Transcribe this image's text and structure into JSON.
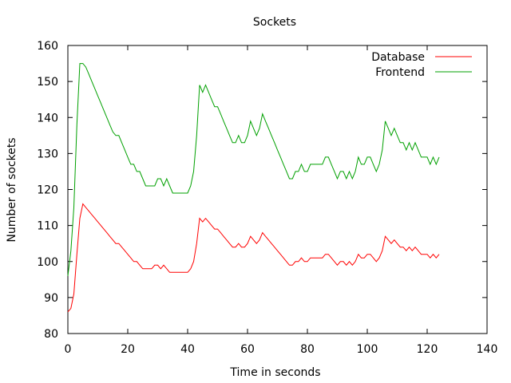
{
  "chart_data": {
    "type": "line",
    "title": "Sockets",
    "xlabel": "Time in seconds",
    "ylabel": "Number of sockets",
    "xlim": [
      0,
      140
    ],
    "ylim": [
      80,
      160
    ],
    "x_ticks": [
      "0",
      "20",
      "40",
      "60",
      "80",
      "100",
      "120",
      "140"
    ],
    "y_ticks": [
      "80",
      "90",
      "100",
      "110",
      "120",
      "130",
      "140",
      "150",
      "160"
    ],
    "grid": false,
    "legend_position": "top-right",
    "series": [
      {
        "name": "Database",
        "color": "#ff0000",
        "points": [
          [
            0,
            86
          ],
          [
            1,
            87
          ],
          [
            2,
            91
          ],
          [
            3,
            102
          ],
          [
            4,
            112
          ],
          [
            5,
            116
          ],
          [
            6,
            115
          ],
          [
            7,
            114
          ],
          [
            8,
            113
          ],
          [
            9,
            112
          ],
          [
            10,
            111
          ],
          [
            11,
            110
          ],
          [
            12,
            109
          ],
          [
            13,
            108
          ],
          [
            14,
            107
          ],
          [
            15,
            106
          ],
          [
            16,
            105
          ],
          [
            17,
            105
          ],
          [
            18,
            104
          ],
          [
            19,
            103
          ],
          [
            20,
            102
          ],
          [
            21,
            101
          ],
          [
            22,
            100
          ],
          [
            23,
            100
          ],
          [
            24,
            99
          ],
          [
            25,
            98
          ],
          [
            26,
            98
          ],
          [
            27,
            98
          ],
          [
            28,
            98
          ],
          [
            29,
            99
          ],
          [
            30,
            99
          ],
          [
            31,
            98
          ],
          [
            32,
            99
          ],
          [
            33,
            98
          ],
          [
            34,
            97
          ],
          [
            35,
            97
          ],
          [
            36,
            97
          ],
          [
            37,
            97
          ],
          [
            38,
            97
          ],
          [
            39,
            97
          ],
          [
            40,
            97
          ],
          [
            41,
            98
          ],
          [
            42,
            100
          ],
          [
            43,
            105
          ],
          [
            44,
            112
          ],
          [
            45,
            111
          ],
          [
            46,
            112
          ],
          [
            47,
            111
          ],
          [
            48,
            110
          ],
          [
            49,
            109
          ],
          [
            50,
            109
          ],
          [
            51,
            108
          ],
          [
            52,
            107
          ],
          [
            53,
            106
          ],
          [
            54,
            105
          ],
          [
            55,
            104
          ],
          [
            56,
            104
          ],
          [
            57,
            105
          ],
          [
            58,
            104
          ],
          [
            59,
            104
          ],
          [
            60,
            105
          ],
          [
            61,
            107
          ],
          [
            62,
            106
          ],
          [
            63,
            105
          ],
          [
            64,
            106
          ],
          [
            65,
            108
          ],
          [
            66,
            107
          ],
          [
            67,
            106
          ],
          [
            68,
            105
          ],
          [
            69,
            104
          ],
          [
            70,
            103
          ],
          [
            71,
            102
          ],
          [
            72,
            101
          ],
          [
            73,
            100
          ],
          [
            74,
            99
          ],
          [
            75,
            99
          ],
          [
            76,
            100
          ],
          [
            77,
            100
          ],
          [
            78,
            101
          ],
          [
            79,
            100
          ],
          [
            80,
            100
          ],
          [
            81,
            101
          ],
          [
            82,
            101
          ],
          [
            83,
            101
          ],
          [
            84,
            101
          ],
          [
            85,
            101
          ],
          [
            86,
            102
          ],
          [
            87,
            102
          ],
          [
            88,
            101
          ],
          [
            89,
            100
          ],
          [
            90,
            99
          ],
          [
            91,
            100
          ],
          [
            92,
            100
          ],
          [
            93,
            99
          ],
          [
            94,
            100
          ],
          [
            95,
            99
          ],
          [
            96,
            100
          ],
          [
            97,
            102
          ],
          [
            98,
            101
          ],
          [
            99,
            101
          ],
          [
            100,
            102
          ],
          [
            101,
            102
          ],
          [
            102,
            101
          ],
          [
            103,
            100
          ],
          [
            104,
            101
          ],
          [
            105,
            103
          ],
          [
            106,
            107
          ],
          [
            107,
            106
          ],
          [
            108,
            105
          ],
          [
            109,
            106
          ],
          [
            110,
            105
          ],
          [
            111,
            104
          ],
          [
            112,
            104
          ],
          [
            113,
            103
          ],
          [
            114,
            104
          ],
          [
            115,
            103
          ],
          [
            116,
            104
          ],
          [
            117,
            103
          ],
          [
            118,
            102
          ],
          [
            119,
            102
          ],
          [
            120,
            102
          ],
          [
            121,
            101
          ],
          [
            122,
            102
          ],
          [
            123,
            101
          ],
          [
            124,
            102
          ]
        ]
      },
      {
        "name": "Frontend",
        "color": "#00a000",
        "points": [
          [
            0,
            96
          ],
          [
            1,
            103
          ],
          [
            2,
            115
          ],
          [
            3,
            138
          ],
          [
            4,
            155
          ],
          [
            5,
            155
          ],
          [
            6,
            154
          ],
          [
            7,
            152
          ],
          [
            8,
            150
          ],
          [
            9,
            148
          ],
          [
            10,
            146
          ],
          [
            11,
            144
          ],
          [
            12,
            142
          ],
          [
            13,
            140
          ],
          [
            14,
            138
          ],
          [
            15,
            136
          ],
          [
            16,
            135
          ],
          [
            17,
            135
          ],
          [
            18,
            133
          ],
          [
            19,
            131
          ],
          [
            20,
            129
          ],
          [
            21,
            127
          ],
          [
            22,
            127
          ],
          [
            23,
            125
          ],
          [
            24,
            125
          ],
          [
            25,
            123
          ],
          [
            26,
            121
          ],
          [
            27,
            121
          ],
          [
            28,
            121
          ],
          [
            29,
            121
          ],
          [
            30,
            123
          ],
          [
            31,
            123
          ],
          [
            32,
            121
          ],
          [
            33,
            123
          ],
          [
            34,
            121
          ],
          [
            35,
            119
          ],
          [
            36,
            119
          ],
          [
            37,
            119
          ],
          [
            38,
            119
          ],
          [
            39,
            119
          ],
          [
            40,
            119
          ],
          [
            41,
            121
          ],
          [
            42,
            125
          ],
          [
            43,
            135
          ],
          [
            44,
            149
          ],
          [
            45,
            147
          ],
          [
            46,
            149
          ],
          [
            47,
            147
          ],
          [
            48,
            145
          ],
          [
            49,
            143
          ],
          [
            50,
            143
          ],
          [
            51,
            141
          ],
          [
            52,
            139
          ],
          [
            53,
            137
          ],
          [
            54,
            135
          ],
          [
            55,
            133
          ],
          [
            56,
            133
          ],
          [
            57,
            135
          ],
          [
            58,
            133
          ],
          [
            59,
            133
          ],
          [
            60,
            135
          ],
          [
            61,
            139
          ],
          [
            62,
            137
          ],
          [
            63,
            135
          ],
          [
            64,
            137
          ],
          [
            65,
            141
          ],
          [
            66,
            139
          ],
          [
            67,
            137
          ],
          [
            68,
            135
          ],
          [
            69,
            133
          ],
          [
            70,
            131
          ],
          [
            71,
            129
          ],
          [
            72,
            127
          ],
          [
            73,
            125
          ],
          [
            74,
            123
          ],
          [
            75,
            123
          ],
          [
            76,
            125
          ],
          [
            77,
            125
          ],
          [
            78,
            127
          ],
          [
            79,
            125
          ],
          [
            80,
            125
          ],
          [
            81,
            127
          ],
          [
            82,
            127
          ],
          [
            83,
            127
          ],
          [
            84,
            127
          ],
          [
            85,
            127
          ],
          [
            86,
            129
          ],
          [
            87,
            129
          ],
          [
            88,
            127
          ],
          [
            89,
            125
          ],
          [
            90,
            123
          ],
          [
            91,
            125
          ],
          [
            92,
            125
          ],
          [
            93,
            123
          ],
          [
            94,
            125
          ],
          [
            95,
            123
          ],
          [
            96,
            125
          ],
          [
            97,
            129
          ],
          [
            98,
            127
          ],
          [
            99,
            127
          ],
          [
            100,
            129
          ],
          [
            101,
            129
          ],
          [
            102,
            127
          ],
          [
            103,
            125
          ],
          [
            104,
            127
          ],
          [
            105,
            131
          ],
          [
            106,
            139
          ],
          [
            107,
            137
          ],
          [
            108,
            135
          ],
          [
            109,
            137
          ],
          [
            110,
            135
          ],
          [
            111,
            133
          ],
          [
            112,
            133
          ],
          [
            113,
            131
          ],
          [
            114,
            133
          ],
          [
            115,
            131
          ],
          [
            116,
            133
          ],
          [
            117,
            131
          ],
          [
            118,
            129
          ],
          [
            119,
            129
          ],
          [
            120,
            129
          ],
          [
            121,
            127
          ],
          [
            122,
            129
          ],
          [
            123,
            127
          ],
          [
            124,
            129
          ]
        ]
      }
    ]
  }
}
